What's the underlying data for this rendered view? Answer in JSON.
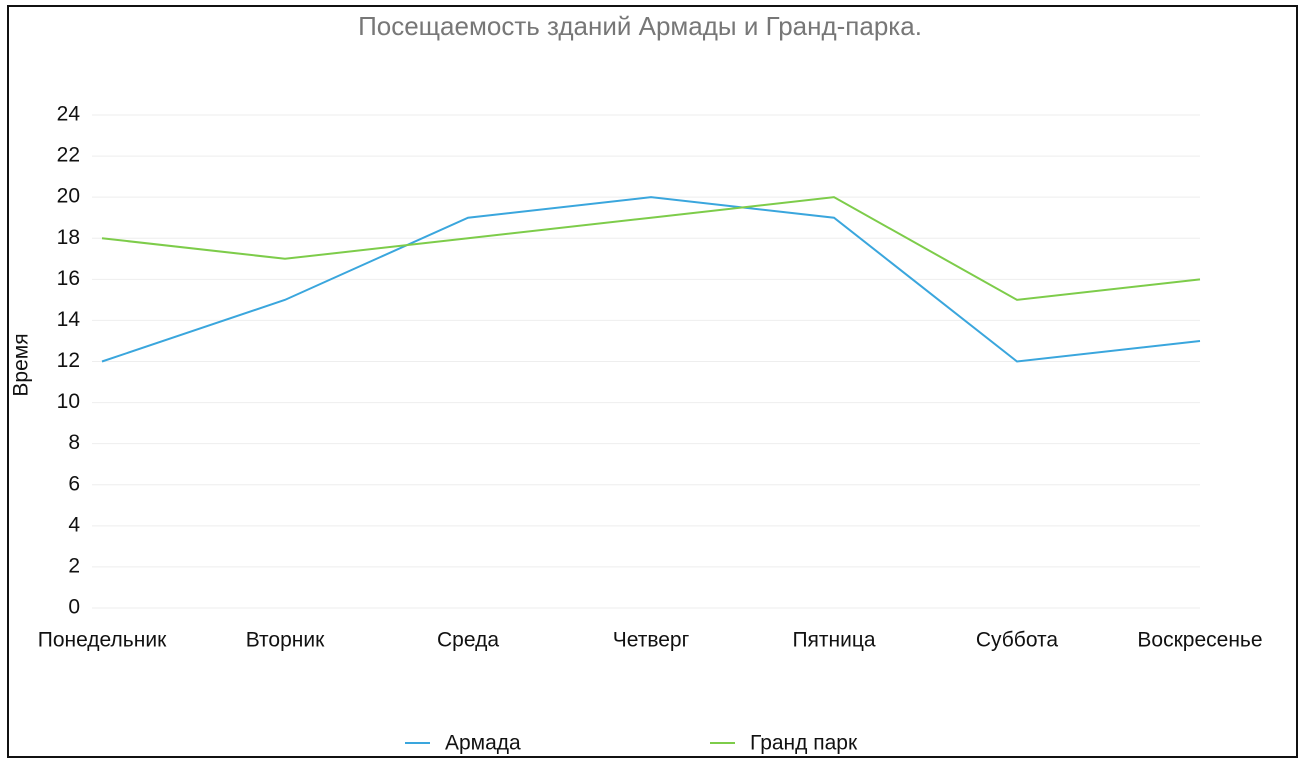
{
  "chart_data": {
    "type": "line",
    "title": "Посещаемость зданий Армады и Гранд-парка.",
    "y_label": "Время",
    "categories": [
      "Понедельник",
      "Вторник",
      "Среда",
      "Четверг",
      "Пятница",
      "Суббота",
      "Воскресенье"
    ],
    "series": [
      {
        "name": "Армада",
        "color": "#3aa6dd",
        "values": [
          12,
          15,
          19,
          20,
          19,
          12,
          13
        ]
      },
      {
        "name": "Гранд парк",
        "color": "#7dcc4a",
        "values": [
          18,
          17,
          18,
          19,
          20,
          15,
          16
        ]
      }
    ],
    "ylim": [
      0,
      24
    ],
    "yticks": [
      0,
      2,
      4,
      6,
      8,
      10,
      12,
      14,
      16,
      18,
      20,
      22,
      24
    ],
    "grid": true,
    "legend": "bottom"
  }
}
